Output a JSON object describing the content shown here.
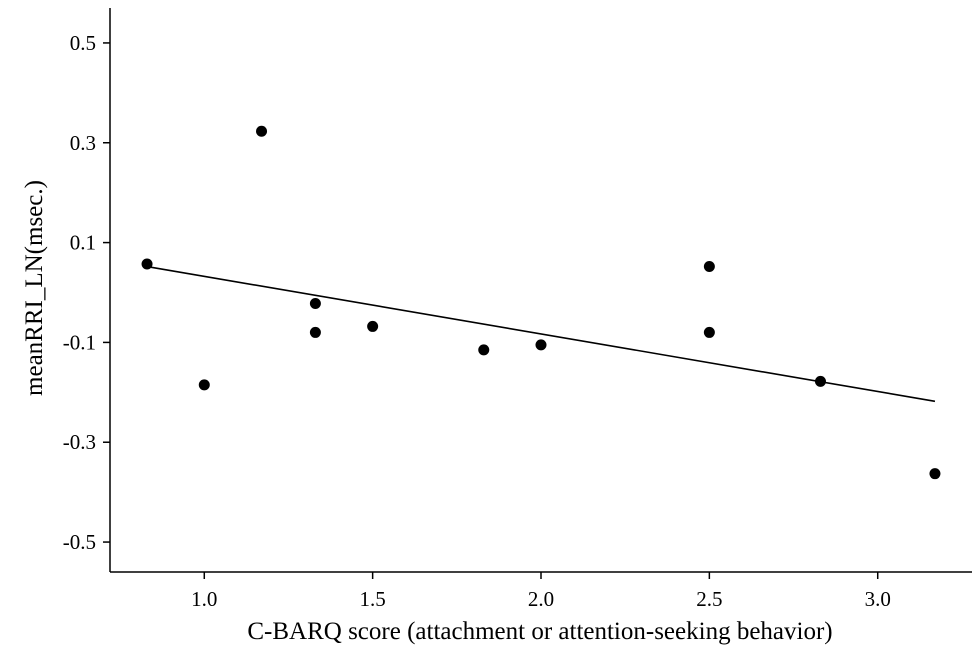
{
  "chart_data": {
    "type": "scatter",
    "xlabel": "C-BARQ score (attachment or attention-seeking behavior)",
    "ylabel": "meanRRI_LN(msec.)",
    "xlim": [
      0.72,
      3.28
    ],
    "ylim": [
      -0.56,
      0.57
    ],
    "x_ticks": [
      1.0,
      1.5,
      2.0,
      2.5,
      3.0
    ],
    "x_tick_labels": [
      "1.0",
      "1.5",
      "2.0",
      "2.5",
      "3.0"
    ],
    "y_ticks": [
      0.5,
      0.3,
      0.1,
      -0.1,
      -0.3,
      -0.5
    ],
    "y_tick_labels": [
      "0.5",
      "0.3",
      "0.1",
      "-0.1",
      "-0.3",
      "-0.5"
    ],
    "grid": false,
    "points": [
      {
        "x": 0.83,
        "y": 0.057
      },
      {
        "x": 1.0,
        "y": -0.185
      },
      {
        "x": 1.17,
        "y": 0.323
      },
      {
        "x": 1.33,
        "y": -0.022
      },
      {
        "x": 1.33,
        "y": -0.08
      },
      {
        "x": 1.5,
        "y": -0.068
      },
      {
        "x": 1.83,
        "y": -0.115
      },
      {
        "x": 2.0,
        "y": -0.105
      },
      {
        "x": 2.5,
        "y": 0.052
      },
      {
        "x": 2.5,
        "y": -0.08
      },
      {
        "x": 2.83,
        "y": -0.178
      },
      {
        "x": 3.17,
        "y": -0.363
      }
    ],
    "trend_line": {
      "x": [
        0.83,
        3.17
      ],
      "y": [
        0.052,
        -0.218
      ]
    }
  }
}
